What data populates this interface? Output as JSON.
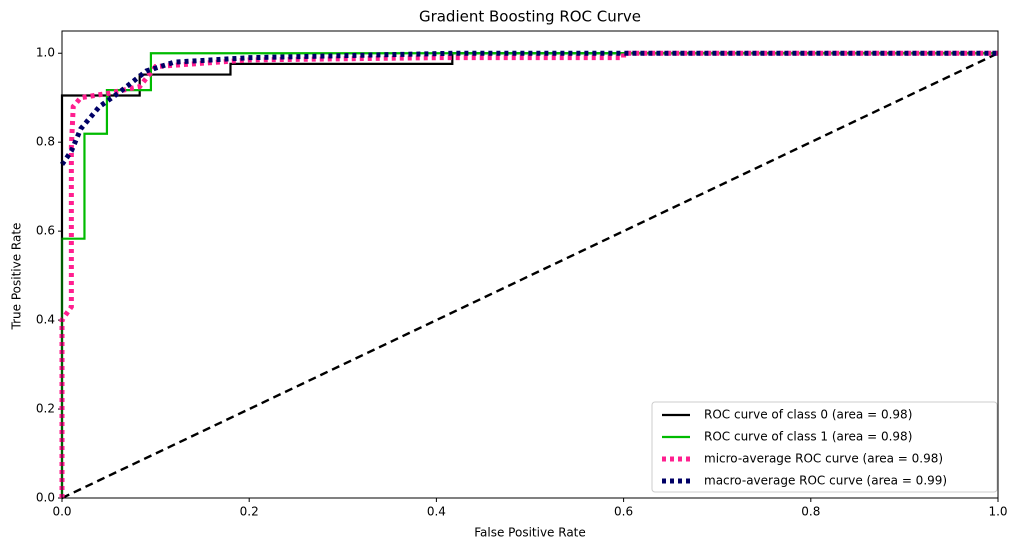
{
  "chart_data": {
    "type": "line",
    "title": "Gradient Boosting ROC Curve",
    "xlabel": "False Positive Rate",
    "ylabel": "True Positive Rate",
    "xlim": [
      0,
      1
    ],
    "ylim": [
      0,
      1.05
    ],
    "xticks": [
      {
        "value": 0,
        "label": "0.0"
      },
      0.2,
      0.4,
      0.6,
      0.8,
      {
        "value": 1,
        "label": "1.0"
      }
    ],
    "yticks": [
      {
        "value": 0,
        "label": "0.0"
      },
      0.2,
      0.4,
      0.6,
      0.8,
      {
        "value": 1,
        "label": "1.0"
      }
    ],
    "legend": "lower right",
    "series": [
      {
        "name": "ROC curve of class 0 (area = 0.98)",
        "color": "#000000",
        "style": "solid",
        "x": [
          0,
          0,
          0.083,
          0.083,
          0.18,
          0.18,
          0.417,
          0.417,
          1
        ],
        "values": [
          0,
          0.905,
          0.905,
          0.952,
          0.952,
          0.976,
          0.976,
          1,
          1
        ]
      },
      {
        "name": "ROC curve of class 1 (area = 0.98)",
        "color": "#00bb00",
        "style": "solid",
        "x": [
          0,
          0,
          0.024,
          0.024,
          0.048,
          0.048,
          0.095,
          0.095,
          1
        ],
        "values": [
          0,
          0.583,
          0.583,
          0.819,
          0.819,
          0.917,
          0.917,
          1,
          1
        ]
      },
      {
        "name": "micro-average ROC curve (area = 0.98)",
        "color": "#ff1f8f",
        "style": "dotted",
        "x": [
          0,
          0,
          0.01,
          0.01,
          0.012,
          0.02,
          0.05,
          0.083,
          0.1,
          0.2,
          0.4,
          0.6,
          0.6,
          1
        ],
        "values": [
          0,
          0.4,
          0.43,
          0.79,
          0.88,
          0.9,
          0.91,
          0.925,
          0.97,
          0.985,
          0.99,
          0.99,
          1,
          1
        ]
      },
      {
        "name": "macro-average ROC curve (area = 0.99)",
        "color": "#000066",
        "style": "dotted",
        "x": [
          0,
          0.01,
          0.02,
          0.04,
          0.06,
          0.09,
          0.12,
          0.2,
          0.42,
          1
        ],
        "values": [
          0.75,
          0.78,
          0.83,
          0.88,
          0.91,
          0.96,
          0.98,
          0.99,
          1,
          1
        ]
      }
    ],
    "reference_line": {
      "color": "#000000",
      "style": "dashed",
      "x": [
        0,
        1
      ],
      "values": [
        0,
        1
      ]
    }
  }
}
